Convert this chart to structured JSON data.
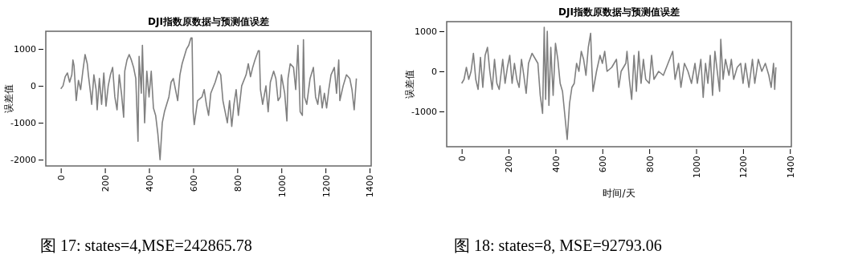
{
  "chart_data": [
    {
      "type": "line",
      "title": "DJI指数原数据与预测值误差",
      "ylabel": "误差值",
      "xlim": [
        -68,
        1407
      ],
      "ylim": [
        -2170,
        1480
      ],
      "xticks": [
        0,
        200,
        400,
        600,
        800,
        1000,
        1200,
        1400
      ],
      "yticks": [
        -2000,
        -1000,
        0,
        1000
      ],
      "grid": false,
      "annotations": [
        "图 17: states=4,MSE=242865.78"
      ],
      "x": [
        0,
        10,
        20,
        30,
        40,
        50,
        55,
        60,
        70,
        80,
        90,
        100,
        110,
        120,
        125,
        135,
        140,
        150,
        160,
        165,
        175,
        185,
        195,
        205,
        215,
        225,
        235,
        245,
        255,
        265,
        275,
        285,
        290,
        300,
        310,
        320,
        330,
        340,
        350,
        355,
        365,
        370,
        380,
        390,
        400,
        410,
        420,
        430,
        440,
        450,
        460,
        470,
        490,
        500,
        510,
        520,
        530,
        540,
        550,
        560,
        570,
        580,
        590,
        595,
        600,
        605,
        620,
        640,
        650,
        660,
        670,
        680,
        700,
        715,
        725,
        735,
        745,
        755,
        765,
        775,
        785,
        795,
        805,
        820,
        840,
        850,
        860,
        870,
        880,
        895,
        900,
        905,
        915,
        930,
        940,
        950,
        965,
        975,
        985,
        995,
        1000,
        1015,
        1025,
        1030,
        1040,
        1055,
        1065,
        1075,
        1085,
        1095,
        1100,
        1105,
        1115,
        1130,
        1145,
        1155,
        1165,
        1175,
        1185,
        1195,
        1205,
        1215,
        1225,
        1240,
        1250,
        1260,
        1265,
        1280,
        1295,
        1310,
        1320,
        1330,
        1340
      ],
      "series": [
        {
          "color": "#808080",
          "values": [
            -80,
            0,
            250,
            350,
            100,
            300,
            700,
            550,
            -400,
            150,
            -100,
            400,
            850,
            600,
            300,
            -200,
            -500,
            300,
            -100,
            -650,
            200,
            -500,
            350,
            -550,
            0,
            300,
            500,
            -300,
            -650,
            300,
            -200,
            -850,
            400,
            700,
            850,
            700,
            500,
            200,
            -1500,
            800,
            -200,
            1100,
            -1000,
            400,
            -300,
            400,
            -600,
            -800,
            -1300,
            -2000,
            -1000,
            -700,
            -300,
            100,
            200,
            -100,
            -400,
            300,
            600,
            800,
            1000,
            1100,
            1300,
            1300,
            -700,
            -1050,
            -400,
            -300,
            -100,
            -500,
            -800,
            -200,
            100,
            400,
            300,
            -400,
            -700,
            -1000,
            -400,
            -1100,
            -500,
            -100,
            -800,
            0,
            300,
            600,
            250,
            500,
            700,
            950,
            950,
            -100,
            -500,
            0,
            -700,
            100,
            400,
            200,
            -400,
            -300,
            300,
            -200,
            -950,
            200,
            600,
            500,
            -100,
            1100,
            -700,
            -800,
            1250,
            -300,
            -500,
            200,
            500,
            -300,
            -500,
            0,
            -600,
            -200,
            -600,
            -100,
            300,
            500,
            -200,
            700,
            -400,
            0,
            300,
            200,
            -100,
            -650,
            200
          ]
        }
      ]
    },
    {
      "type": "line",
      "title": "DJI指数原数据与预测值误差",
      "xlabel": "时间/天",
      "ylabel": "误差值",
      "xlim": [
        -64,
        1406
      ],
      "ylim": [
        -1880,
        1240
      ],
      "xticks": [
        0,
        200,
        400,
        600,
        800,
        1000,
        1200,
        1400
      ],
      "yticks": [
        -1000,
        0,
        1000
      ],
      "grid": false,
      "annotations": [
        "图 18: states=8, MSE=92793.06"
      ],
      "x": [
        0,
        10,
        20,
        30,
        40,
        50,
        60,
        70,
        80,
        90,
        100,
        110,
        120,
        130,
        140,
        150,
        160,
        175,
        185,
        195,
        205,
        215,
        225,
        235,
        245,
        255,
        265,
        275,
        285,
        300,
        315,
        325,
        335,
        345,
        352,
        358,
        365,
        372,
        380,
        390,
        400,
        410,
        420,
        430,
        440,
        450,
        460,
        470,
        480,
        490,
        500,
        510,
        520,
        530,
        540,
        550,
        555,
        560,
        575,
        590,
        600,
        610,
        620,
        640,
        660,
        670,
        680,
        700,
        705,
        715,
        725,
        735,
        745,
        755,
        765,
        775,
        785,
        800,
        810,
        820,
        840,
        860,
        880,
        900,
        910,
        925,
        935,
        950,
        965,
        980,
        995,
        1005,
        1020,
        1030,
        1040,
        1050,
        1060,
        1070,
        1080,
        1090,
        1100,
        1105,
        1115,
        1125,
        1140,
        1150,
        1160,
        1175,
        1190,
        1200,
        1210,
        1225,
        1240,
        1250,
        1265,
        1280,
        1295,
        1310,
        1320,
        1330,
        1335,
        1340
      ],
      "series": [
        {
          "color": "#808080",
          "values": [
            -300,
            -200,
            100,
            -200,
            0,
            450,
            -200,
            -450,
            350,
            -400,
            400,
            600,
            0,
            -450,
            300,
            -300,
            -450,
            300,
            -300,
            100,
            400,
            -300,
            200,
            -200,
            -400,
            300,
            -100,
            -550,
            200,
            450,
            300,
            200,
            -600,
            -1050,
            1100,
            -700,
            1000,
            -850,
            600,
            -600,
            700,
            300,
            -300,
            -500,
            -1100,
            -1700,
            -800,
            -400,
            -300,
            200,
            0,
            500,
            300,
            -100,
            600,
            950,
            100,
            -500,
            0,
            400,
            200,
            500,
            0,
            100,
            300,
            -400,
            0,
            200,
            500,
            -200,
            -700,
            400,
            -500,
            500,
            -300,
            300,
            -200,
            -300,
            400,
            -200,
            0,
            -100,
            200,
            500,
            -200,
            200,
            -400,
            200,
            0,
            -300,
            200,
            -300,
            300,
            -650,
            200,
            -300,
            400,
            -600,
            500,
            0,
            -500,
            800,
            -200,
            300,
            -100,
            300,
            -200,
            100,
            200,
            -300,
            200,
            -400,
            300,
            -300,
            300,
            0,
            200,
            -100,
            -400,
            200,
            -450,
            100
          ]
        }
      ]
    }
  ]
}
